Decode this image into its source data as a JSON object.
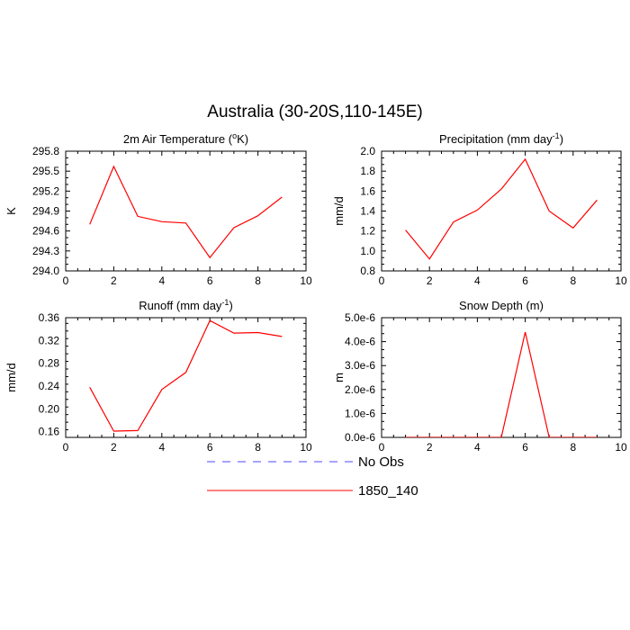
{
  "title": "Australia (30-20S,110-145E)",
  "legend": [
    {
      "label": "No Obs",
      "color": "#4b4bff",
      "dashed": true
    },
    {
      "label": "1850_140",
      "color": "#ff0000",
      "dashed": false
    }
  ],
  "chart_data": [
    {
      "type": "line",
      "title_text": "2m Air Temperature (",
      "title_sup": "o",
      "title_tail": "K)",
      "ylabel": "K",
      "xlim": [
        0,
        10
      ],
      "ylim": [
        294.0,
        295.8
      ],
      "xticks": [
        "0",
        "2",
        "4",
        "6",
        "8",
        "10"
      ],
      "yticks": [
        "294.0",
        "294.3",
        "294.6",
        "294.9",
        "295.2",
        "295.5",
        "295.8"
      ],
      "x": [
        1,
        2,
        3,
        4,
        5,
        6,
        7,
        8,
        9
      ],
      "series": [
        {
          "values": [
            294.7,
            295.57,
            294.82,
            294.74,
            294.72,
            294.2,
            294.65,
            294.83,
            295.11
          ],
          "color": "#ff0000"
        }
      ]
    },
    {
      "type": "line",
      "title_text": "Precipitation (mm day",
      "title_sup": "-1",
      "title_tail": ")",
      "ylabel": "mm/d",
      "xlim": [
        0,
        10
      ],
      "ylim": [
        0.8,
        2.0
      ],
      "xticks": [
        "0",
        "2",
        "4",
        "6",
        "8",
        "10"
      ],
      "yticks": [
        "0.8",
        "1.0",
        "1.2",
        "1.4",
        "1.6",
        "1.8",
        "2.0"
      ],
      "x": [
        1,
        2,
        3,
        4,
        5,
        6,
        7,
        8,
        9
      ],
      "series": [
        {
          "values": [
            1.21,
            0.92,
            1.29,
            1.41,
            1.62,
            1.92,
            1.4,
            1.23,
            1.51
          ],
          "color": "#ff0000"
        }
      ]
    },
    {
      "type": "line",
      "title_text": "Runoff (mm day",
      "title_sup": "-1",
      "title_tail": ")",
      "ylabel": "mm/d",
      "xlim": [
        0,
        10
      ],
      "ylim": [
        0.15,
        0.36
      ],
      "xticks": [
        "0",
        "2",
        "4",
        "6",
        "8",
        "10"
      ],
      "yticks": [
        "0.16",
        "0.20",
        "0.24",
        "0.28",
        "0.32",
        "0.36"
      ],
      "x": [
        1,
        2,
        3,
        4,
        5,
        6,
        7,
        8,
        9
      ],
      "series": [
        {
          "values": [
            0.238,
            0.161,
            0.162,
            0.234,
            0.264,
            0.355,
            0.333,
            0.334,
            0.327
          ],
          "color": "#ff0000"
        }
      ]
    },
    {
      "type": "line",
      "title_text": "Snow Depth (m)",
      "title_sup": "",
      "title_tail": "",
      "ylabel": "m",
      "xlim": [
        0,
        10
      ],
      "ylim": [
        0,
        5e-06
      ],
      "xticks": [
        "0",
        "2",
        "4",
        "6",
        "8",
        "10"
      ],
      "yticks": [
        "0.0e-6",
        "1.0e-6",
        "2.0e-6",
        "3.0e-6",
        "4.0e-6",
        "5.0e-6"
      ],
      "x": [
        1,
        2,
        3,
        4,
        5,
        6,
        7,
        8,
        9
      ],
      "series": [
        {
          "values": [
            0,
            0,
            0,
            0,
            0,
            4.4e-06,
            0,
            0,
            0
          ],
          "color": "#ff0000"
        }
      ]
    }
  ]
}
